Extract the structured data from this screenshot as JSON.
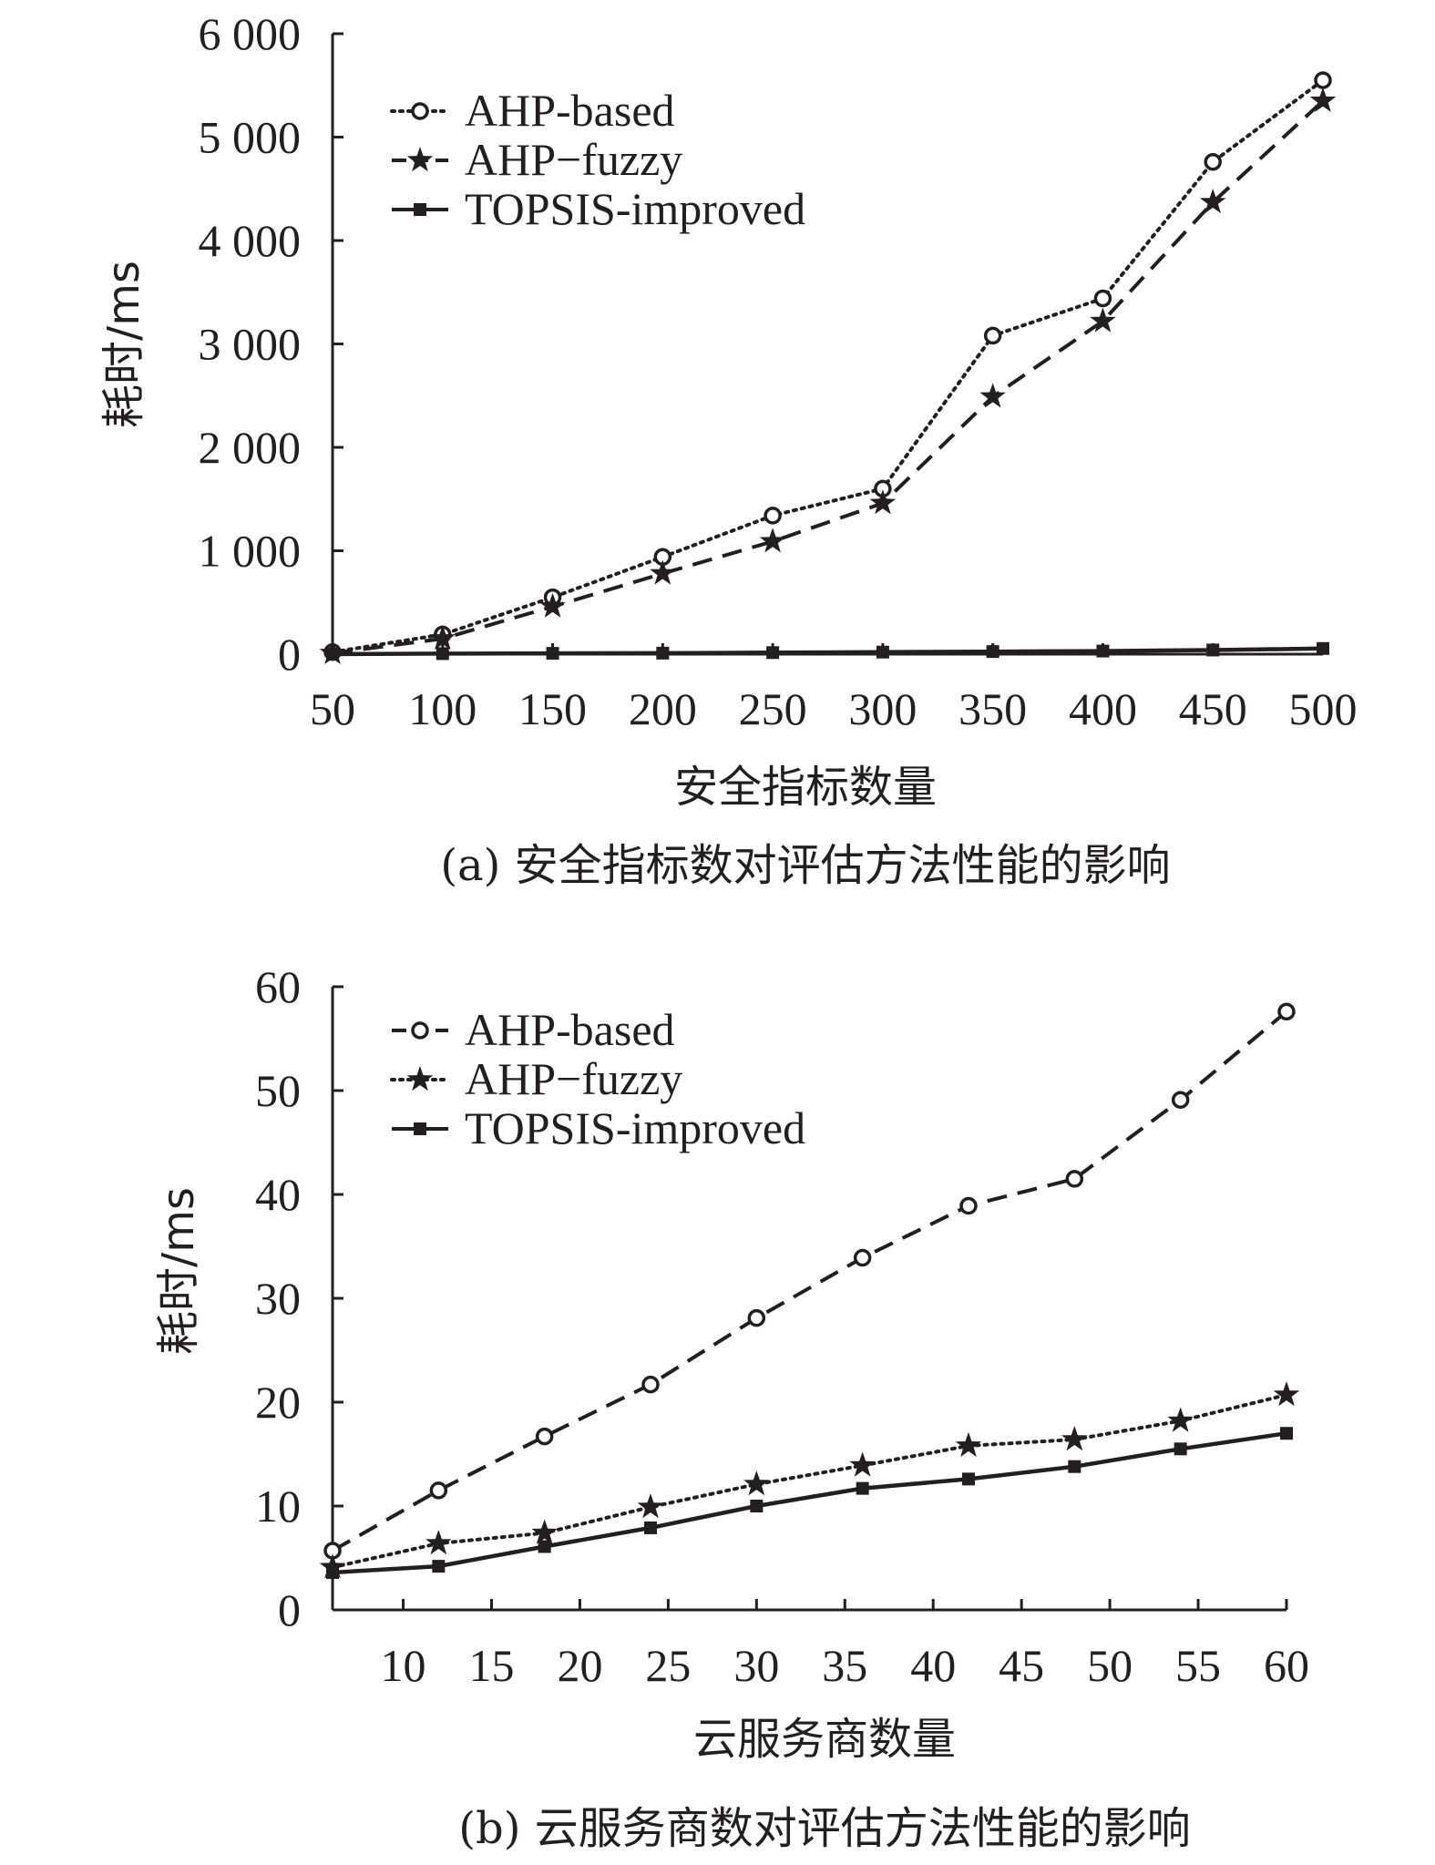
{
  "chart_data": [
    {
      "type": "line",
      "caption": "(a) 安全指标数对评估方法性能的影响",
      "xlabel": "安全指标数量",
      "ylabel": "耗时/ms",
      "x": [
        50,
        100,
        150,
        200,
        250,
        300,
        350,
        400,
        450,
        500
      ],
      "x_tick_labels": [
        "50",
        "100",
        "150",
        "200",
        "250",
        "300",
        "350",
        "400",
        "450",
        "500"
      ],
      "ylim": [
        0,
        6000
      ],
      "y_ticks": [
        0,
        1000,
        2000,
        3000,
        4000,
        5000,
        6000
      ],
      "y_tick_labels": [
        "0",
        "1 000",
        "2 000",
        "3 000",
        "4 000",
        "5 000",
        "6 000"
      ],
      "legend_position": "top-left",
      "series": [
        {
          "name": "AHP-based",
          "marker": "circle",
          "line_style": "dotted",
          "values": [
            20,
            190,
            550,
            940,
            1340,
            1600,
            3080,
            3440,
            4760,
            5550
          ]
        },
        {
          "name": "AHP−fuzzy",
          "marker": "star",
          "line_style": "dashed",
          "values": [
            10,
            150,
            460,
            780,
            1090,
            1460,
            2490,
            3220,
            4370,
            5350
          ]
        },
        {
          "name": "TOPSIS-improved",
          "marker": "square",
          "line_style": "solid",
          "values": [
            0,
            5,
            8,
            10,
            15,
            20,
            25,
            30,
            40,
            55
          ]
        }
      ]
    },
    {
      "type": "line",
      "caption": "(b) 云服务商数对评估方法性能的影响",
      "xlabel": "云服务商数量",
      "ylabel": "耗时/ms",
      "x": [
        6,
        12,
        18,
        24,
        30,
        36,
        42,
        48,
        54,
        60
      ],
      "x_ticks": [
        10,
        15,
        20,
        25,
        30,
        35,
        40,
        45,
        50,
        55,
        60
      ],
      "x_tick_labels": [
        "10",
        "15",
        "20",
        "25",
        "30",
        "35",
        "40",
        "45",
        "50",
        "55",
        "60"
      ],
      "xlim": [
        6,
        60
      ],
      "ylim": [
        0,
        60
      ],
      "y_ticks": [
        0,
        10,
        20,
        30,
        40,
        50,
        60
      ],
      "y_tick_labels": [
        "0",
        "10",
        "20",
        "30",
        "40",
        "50",
        "60"
      ],
      "legend_position": "top-left",
      "series": [
        {
          "name": "AHP-based",
          "marker": "circle",
          "line_style": "dashed",
          "values": [
            5.7,
            11.5,
            16.7,
            21.7,
            28.1,
            33.9,
            38.9,
            41.5,
            49.1,
            57.6
          ]
        },
        {
          "name": "AHP−fuzzy",
          "marker": "star",
          "line_style": "dotted",
          "values": [
            4.1,
            6.4,
            7.4,
            9.9,
            12.1,
            13.9,
            15.8,
            16.4,
            18.2,
            20.7
          ]
        },
        {
          "name": "TOPSIS-improved",
          "marker": "square",
          "line_style": "solid",
          "values": [
            3.6,
            4.2,
            6.1,
            7.9,
            10.0,
            11.7,
            12.6,
            13.8,
            15.5,
            17.0
          ]
        }
      ]
    }
  ]
}
